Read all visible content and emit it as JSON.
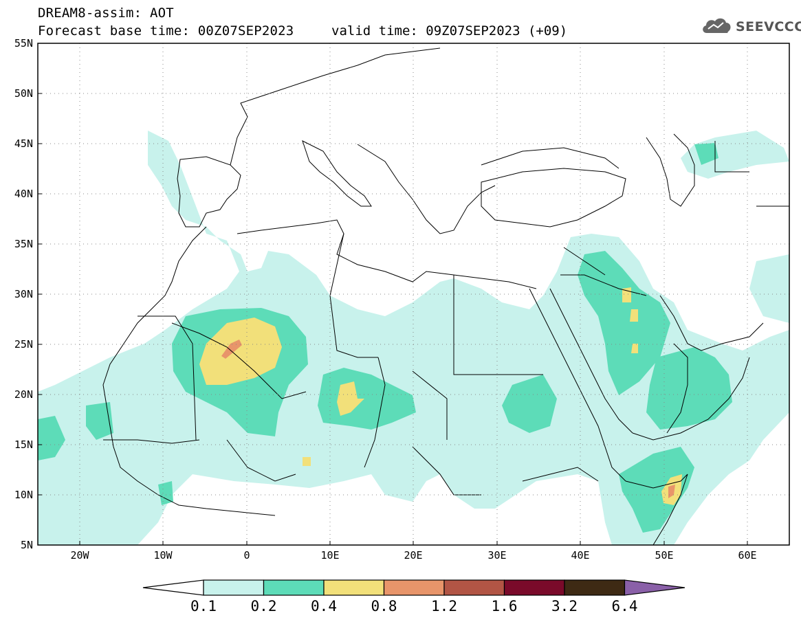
{
  "header": {
    "line1": "DREAM8-assim: AOT",
    "line2": "Forecast base time: 00Z07SEP2023",
    "valid": "valid time: 09Z07SEP2023 (+09)",
    "logo_text": "SEEVCCC",
    "logo_icon": "cloud-icon"
  },
  "map": {
    "lon_range": [
      -25,
      65
    ],
    "lat_range": [
      5,
      55
    ],
    "lat_labels": [
      "55N",
      "50N",
      "45N",
      "40N",
      "35N",
      "30N",
      "25N",
      "20N",
      "15N",
      "10N",
      "5N"
    ],
    "lon_labels": [
      "20W",
      "10W",
      "0",
      "10E",
      "20E",
      "30E",
      "40E",
      "50E",
      "60E"
    ],
    "grid": "dotted"
  },
  "colorbar": {
    "levels": [
      "0.1",
      "0.2",
      "0.4",
      "0.8",
      "1.2",
      "1.6",
      "3.2",
      "6.4"
    ],
    "colors": [
      "#c8f2ec",
      "#5ddcb8",
      "#f2e07a",
      "#e8956a",
      "#b25545",
      "#7a0a2a",
      "#3e2a14",
      "#8a60a8"
    ],
    "under_color": "#ffffff"
  }
}
